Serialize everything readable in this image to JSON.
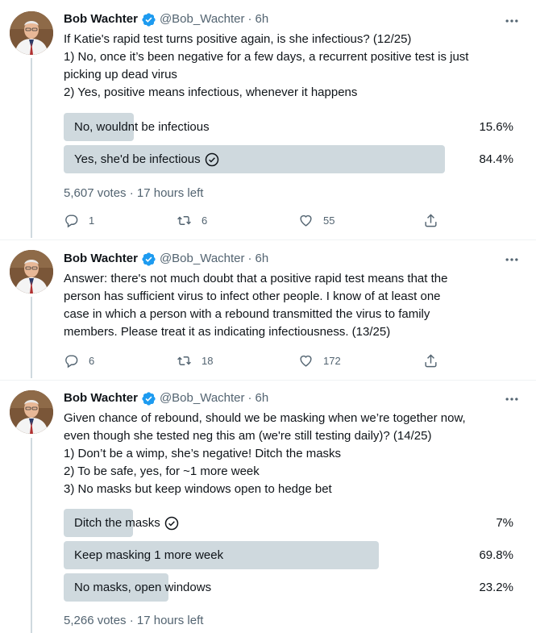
{
  "tweets": [
    {
      "author": "Bob Wachter",
      "handle": "@Bob_Wachter",
      "time": "6h",
      "lines": [
        "If Katie's rapid test turns positive again, is she infectious? (12/25)",
        "1) No, once it’s been negative for a few days, a recurrent positive test is just",
        "picking up dead virus",
        "2) Yes, positive means infectious, whenever it happens"
      ],
      "poll": {
        "options": [
          {
            "label": "No, wouldnt be infectious",
            "pct": "15.6%",
            "fraction": 0.156,
            "selected": false
          },
          {
            "label": "Yes, she'd be infectious",
            "pct": "84.4%",
            "fraction": 0.844,
            "selected": true
          }
        ],
        "summary": "5,607 votes · 17 hours left"
      },
      "actions": {
        "replies": "1",
        "retweets": "6",
        "likes": "55"
      }
    },
    {
      "author": "Bob Wachter",
      "handle": "@Bob_Wachter",
      "time": "6h",
      "lines": [
        "Answer: there's not much doubt that a positive rapid test means that the",
        "person has sufficient virus to infect other people. I know of at least one",
        "case in which a person with a rebound transmitted the virus to family",
        "members. Please treat it as indicating infectiousness. (13/25)"
      ],
      "actions": {
        "replies": "6",
        "retweets": "18",
        "likes": "172"
      }
    },
    {
      "author": "Bob Wachter",
      "handle": "@Bob_Wachter",
      "time": "6h",
      "lines": [
        "Given chance of rebound, should we be masking when we’re together now,",
        "even though she tested neg this am (we're still testing daily)? (14/25)",
        "1) Don’t be a wimp, she’s negative! Ditch the masks",
        "2) To be safe, yes, for ~1 more week",
        "3) No masks but keep windows open to hedge bet"
      ],
      "poll": {
        "options": [
          {
            "label": "Ditch the masks",
            "pct": "7%",
            "fraction": 0.07,
            "selected": true
          },
          {
            "label": "Keep masking 1 more week",
            "pct": "69.8%",
            "fraction": 0.698,
            "selected": false
          },
          {
            "label": "No masks, open windows",
            "pct": "23.2%",
            "fraction": 0.232,
            "selected": false
          }
        ],
        "summary": "5,266 votes · 17 hours left"
      }
    }
  ],
  "colors": {
    "bar": "#cfd9de",
    "verified": "#1d9bf0",
    "muted": "#536471"
  }
}
